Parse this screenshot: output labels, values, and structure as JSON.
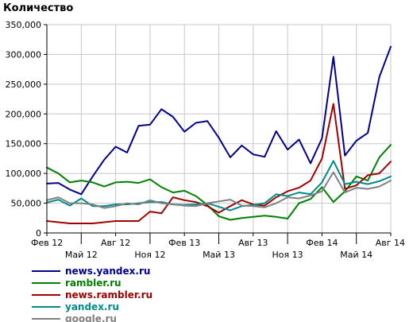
{
  "chart_data": {
    "type": "line",
    "title": "Количество",
    "xlabel": "",
    "ylabel": "",
    "ylim": [
      0,
      350000
    ],
    "y_ticks": [
      0,
      50000,
      100000,
      150000,
      200000,
      250000,
      300000,
      350000
    ],
    "y_tick_labels": [
      "0",
      "50,000",
      "100,000",
      "150,000",
      "200,000",
      "250,000",
      "300,000",
      "350,000"
    ],
    "x_count": 31,
    "x_tick_labels": [
      {
        "index": 0,
        "label": "Фев 12",
        "row": 1
      },
      {
        "index": 3,
        "label": "Май 12",
        "row": 2
      },
      {
        "index": 6,
        "label": "Авг 12",
        "row": 1
      },
      {
        "index": 9,
        "label": "Ноя 12",
        "row": 2
      },
      {
        "index": 12,
        "label": "Фев 13",
        "row": 1
      },
      {
        "index": 15,
        "label": "Май 13",
        "row": 2
      },
      {
        "index": 18,
        "label": "Авг 13",
        "row": 1
      },
      {
        "index": 21,
        "label": "Ноя 13",
        "row": 2
      },
      {
        "index": 24,
        "label": "Фев 14",
        "row": 1
      },
      {
        "index": 27,
        "label": "Май 14",
        "row": 2
      },
      {
        "index": 30,
        "label": "Авг 14",
        "row": 1
      }
    ],
    "grid": true,
    "legend_position": "bottom-left",
    "series": [
      {
        "name": "news.yandex.ru",
        "color": "#00008b",
        "values": [
          83000,
          84000,
          73000,
          65000,
          95000,
          123000,
          145000,
          135000,
          180000,
          182000,
          208000,
          195000,
          170000,
          185000,
          188000,
          160000,
          127000,
          147000,
          132000,
          128000,
          171000,
          140000,
          157000,
          117000,
          159000,
          296000,
          130000,
          155000,
          168000,
          262000,
          313000
        ]
      },
      {
        "name": "rambler.ru",
        "color": "#008000",
        "values": [
          110000,
          100000,
          85000,
          88000,
          85000,
          78000,
          85000,
          86000,
          84000,
          90000,
          77000,
          68000,
          71000,
          62000,
          47000,
          28000,
          22000,
          25000,
          27000,
          29000,
          27000,
          24000,
          50000,
          57000,
          77000,
          52000,
          70000,
          95000,
          88000,
          127000,
          148000
        ]
      },
      {
        "name": "news.rambler.ru",
        "color": "#a00000",
        "values": [
          20000,
          18000,
          16000,
          16000,
          16000,
          18000,
          20000,
          20000,
          20000,
          36000,
          33000,
          60000,
          55000,
          52000,
          45000,
          34000,
          45000,
          55000,
          48000,
          46000,
          60000,
          70000,
          76000,
          88000,
          125000,
          217000,
          74000,
          80000,
          97000,
          100000,
          120000
        ]
      },
      {
        "name": "yandex.ru",
        "color": "#008b8b",
        "values": [
          51000,
          56000,
          46000,
          58000,
          45000,
          45000,
          48000,
          48000,
          50000,
          52000,
          52000,
          48000,
          47000,
          48000,
          50000,
          44000,
          38000,
          45000,
          47000,
          50000,
          65000,
          62000,
          68000,
          65000,
          85000,
          121000,
          82000,
          86000,
          82000,
          87000,
          95000
        ]
      },
      {
        "name": "google.ru",
        "color": "#808080",
        "values": [
          55000,
          60000,
          50000,
          50000,
          48000,
          42000,
          45000,
          50000,
          48000,
          55000,
          50000,
          48000,
          46000,
          45000,
          50000,
          53000,
          56000,
          46000,
          45000,
          43000,
          50000,
          60000,
          58000,
          63000,
          70000,
          102000,
          68000,
          76000,
          74000,
          78000,
          88000
        ]
      }
    ]
  }
}
